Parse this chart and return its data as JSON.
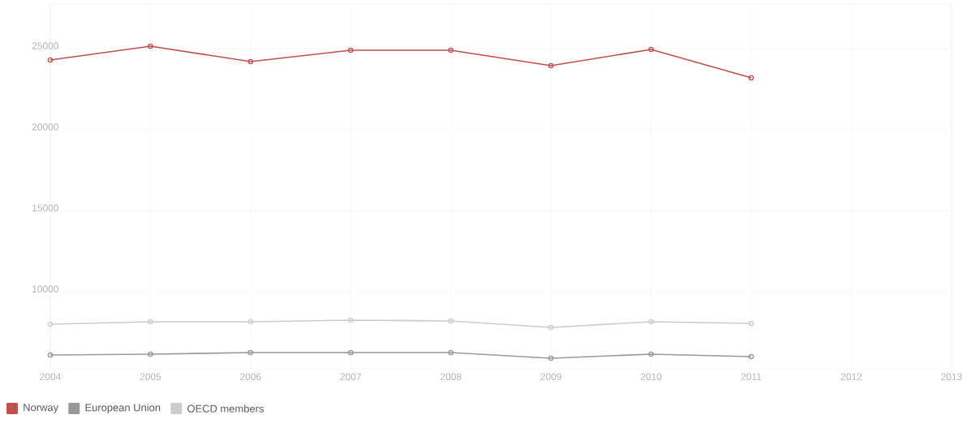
{
  "chart_data": {
    "type": "line",
    "x": [
      2004,
      2005,
      2006,
      2007,
      2008,
      2009,
      2010,
      2011
    ],
    "series": [
      {
        "name": "Norway",
        "color": "#c0504d",
        "values": [
          24300,
          25150,
          24200,
          24900,
          24900,
          23950,
          24950,
          23200
        ]
      },
      {
        "name": "European Union",
        "color": "#999999",
        "values": [
          6100,
          6150,
          6250,
          6250,
          6250,
          5900,
          6150,
          6000
        ]
      },
      {
        "name": "OECD members",
        "color": "#cccccc",
        "values": [
          8000,
          8150,
          8150,
          8250,
          8200,
          7800,
          8150,
          8050
        ]
      }
    ],
    "xlim": [
      2004,
      2013
    ],
    "xticks": [
      2004,
      2005,
      2006,
      2007,
      2008,
      2009,
      2010,
      2011,
      2012,
      2013
    ],
    "ylim": [
      5250,
      27750
    ],
    "yticks": [
      10000,
      15000,
      20000,
      25000
    ],
    "grid": true,
    "legend": "bottom left",
    "marker": "circle",
    "line_style": "solid"
  }
}
